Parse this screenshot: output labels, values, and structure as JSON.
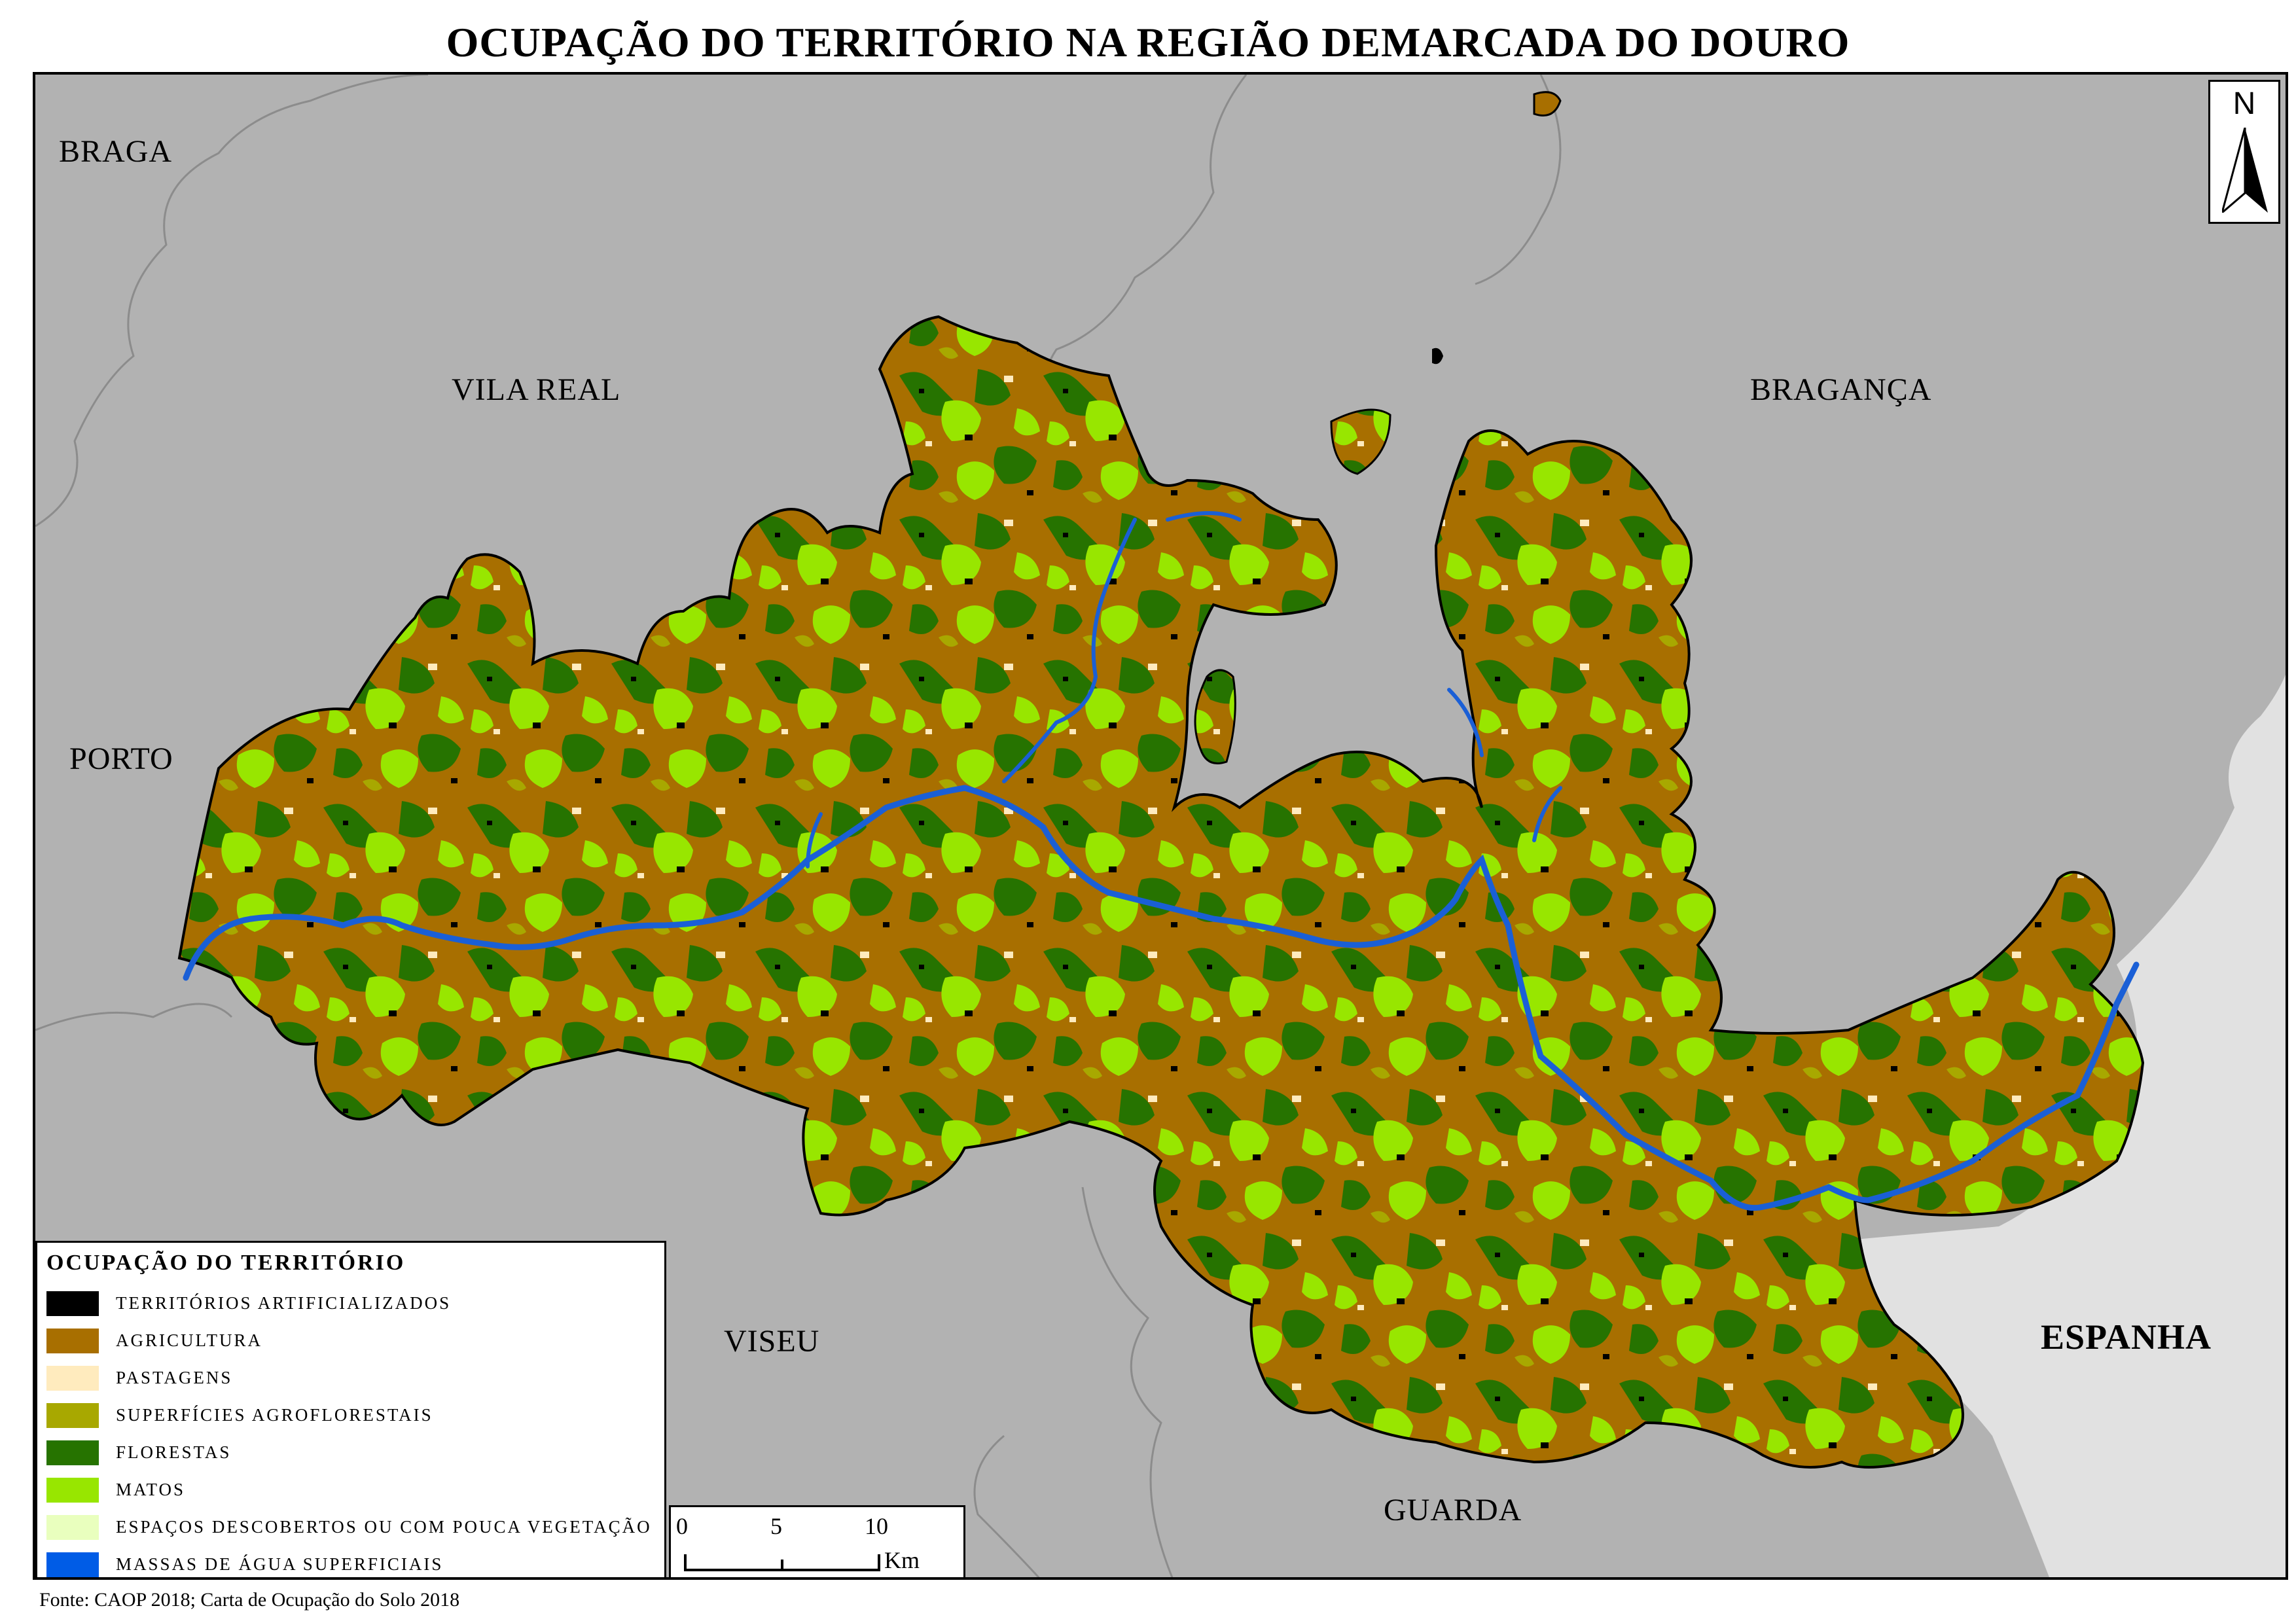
{
  "title": "OCUPAÇÃO DO TERRITÓRIO NA REGIÃO DEMARCADA DO DOURO",
  "north_arrow": {
    "letter": "N",
    "icon": "north-arrow-icon"
  },
  "places": {
    "braga": "BRAGA",
    "vila_real": "VILA REAL",
    "braganca": "BRAGANÇA",
    "porto": "PORTO",
    "viseu": "VISEU",
    "guarda": "GUARDA",
    "espanha": "ESPANHA"
  },
  "legend": {
    "title": "OCUPAÇÃO DO TERRITÓRIO",
    "items": [
      {
        "label": "TERRITÓRIOS ARTIFICIALIZADOS",
        "color": "#000000"
      },
      {
        "label": "AGRICULTURA",
        "color": "#a86f00"
      },
      {
        "label": "PASTAGENS",
        "color": "#ffebbe"
      },
      {
        "label": "SUPERFÍCIES AGROFLORESTAIS",
        "color": "#a8a800"
      },
      {
        "label": "FLORESTAS",
        "color": "#267300"
      },
      {
        "label": "MATOS",
        "color": "#98e600"
      },
      {
        "label": "ESPAÇOS DESCOBERTOS OU COM POUCA VEGETAÇÃO",
        "color": "#e9ffbe"
      },
      {
        "label": "MASSAS DE ÁGUA SUPERFICIAIS",
        "color": "#005ce6"
      }
    ]
  },
  "scale": {
    "ticks": [
      "0",
      "5",
      "10"
    ],
    "unit": "Km"
  },
  "colors": {
    "surrounding_portugal": "#b2b2b2",
    "spain": "#e1e1e1",
    "district_border": "#8c8c8c",
    "river": "#1a5fd6"
  },
  "source": "Fonte: CAOP 2018; Carta de Ocupação do Solo 2018"
}
